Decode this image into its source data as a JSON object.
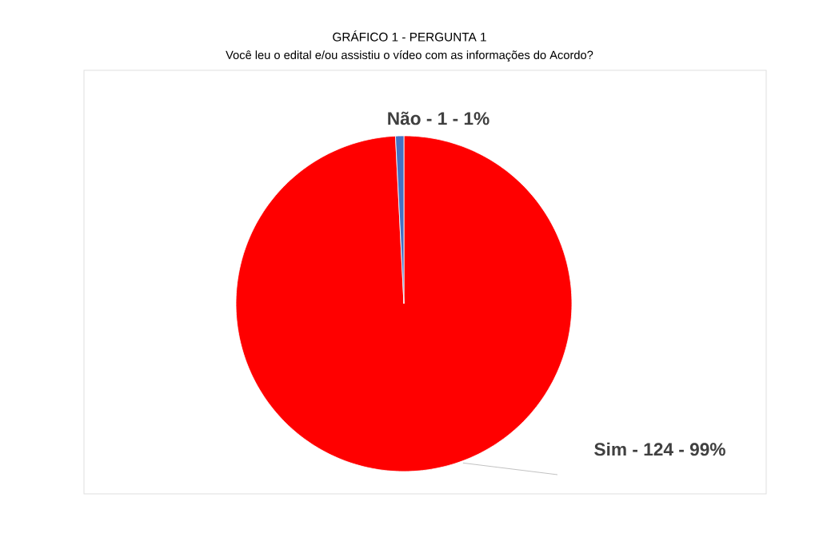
{
  "chart_data": {
    "type": "pie",
    "title": "GRÁFICO 1  - PERGUNTA 1",
    "subtitle": "Você leu o edital e/ou assistiu o vídeo com as informações do Acordo?",
    "categories": [
      "Não -",
      "Sim -"
    ],
    "values": [
      1,
      124
    ],
    "colors": [
      "#4472c4",
      "#ff0000"
    ],
    "value_labels": [
      "1 - 1%",
      "124  - 99%"
    ]
  }
}
